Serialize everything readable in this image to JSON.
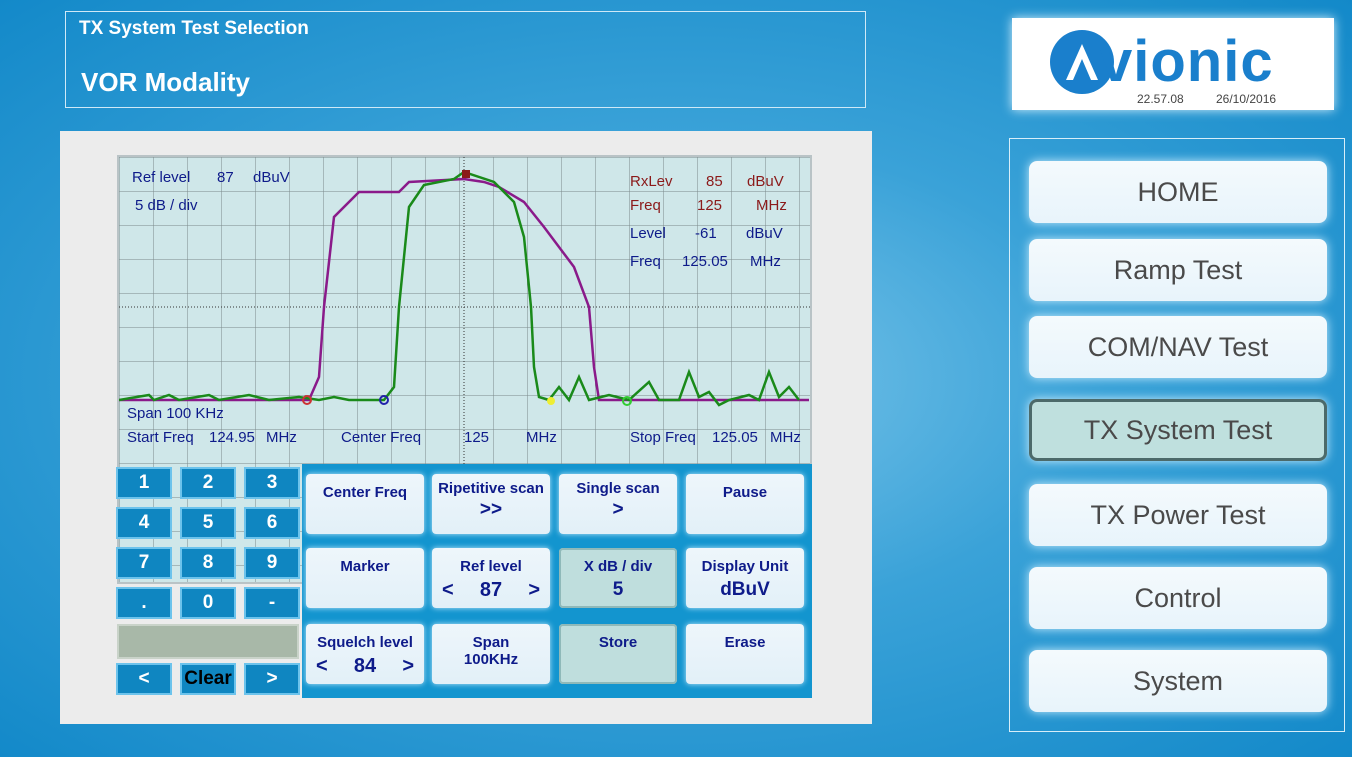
{
  "header": {
    "selection_title": "TX System Test Selection",
    "modality": "VOR Modality"
  },
  "logo": {
    "brand": "vionic",
    "time": "22.57.08",
    "date": "26/10/2016"
  },
  "screen": {
    "ref_level_label": "Ref level",
    "ref_level_value": "87",
    "ref_level_unit": "dBuV",
    "scale": "5 dB / div",
    "rxlev_label": "RxLev",
    "rxlev_value": "85",
    "rxlev_unit": "dBuV",
    "freq1_label": "Freq",
    "freq1_value": "125",
    "freq1_unit": "MHz",
    "level_label": "Level",
    "level_value": "-61",
    "level_unit": "dBuV",
    "freq2_label": "Freq",
    "freq2_value": "125.05",
    "freq2_unit": "MHz",
    "span": "Span  100 KHz",
    "start_freq_label": "Start Freq",
    "start_freq_value": "124.95",
    "start_freq_unit": "MHz",
    "center_freq_label": "Center Freq",
    "center_freq_value": "125",
    "center_freq_unit": "MHz",
    "stop_freq_label": "Stop Freq",
    "stop_freq_value": "125.05",
    "stop_freq_unit": "MHz"
  },
  "keypad": {
    "keys": [
      "1",
      "2",
      "3",
      "4",
      "5",
      "6",
      "7",
      "8",
      "9",
      ".",
      "0",
      "-"
    ],
    "left": "<",
    "clear": "Clear",
    "right": ">"
  },
  "functions": {
    "center_freq": "Center Freq",
    "repetitive_scan": "Ripetitive scan",
    "repetitive_scan_sym": ">>",
    "single_scan": "Single scan",
    "single_scan_sym": ">",
    "pause": "Pause",
    "marker": "Marker",
    "ref_level": "Ref level",
    "ref_level_value": "87",
    "x_db_div": "X dB / div",
    "x_db_div_value": "5",
    "display_unit": "Display Unit",
    "display_unit_value": "dBuV",
    "squelch": "Squelch level",
    "squelch_value": "84",
    "span": "Span",
    "span_value": "100KHz",
    "store": "Store",
    "erase": "Erase",
    "dec": "<",
    "inc": ">"
  },
  "nav": {
    "home": "HOME",
    "ramp": "Ramp Test",
    "comnav": "COM/NAV Test",
    "txsystem": "TX System Test",
    "txpower": "TX Power Test",
    "control": "Control",
    "system": "System"
  },
  "colors": {
    "trace_green": "#1a8a1a",
    "trace_purple": "#8a1a8a",
    "accent": "#1395cf"
  }
}
